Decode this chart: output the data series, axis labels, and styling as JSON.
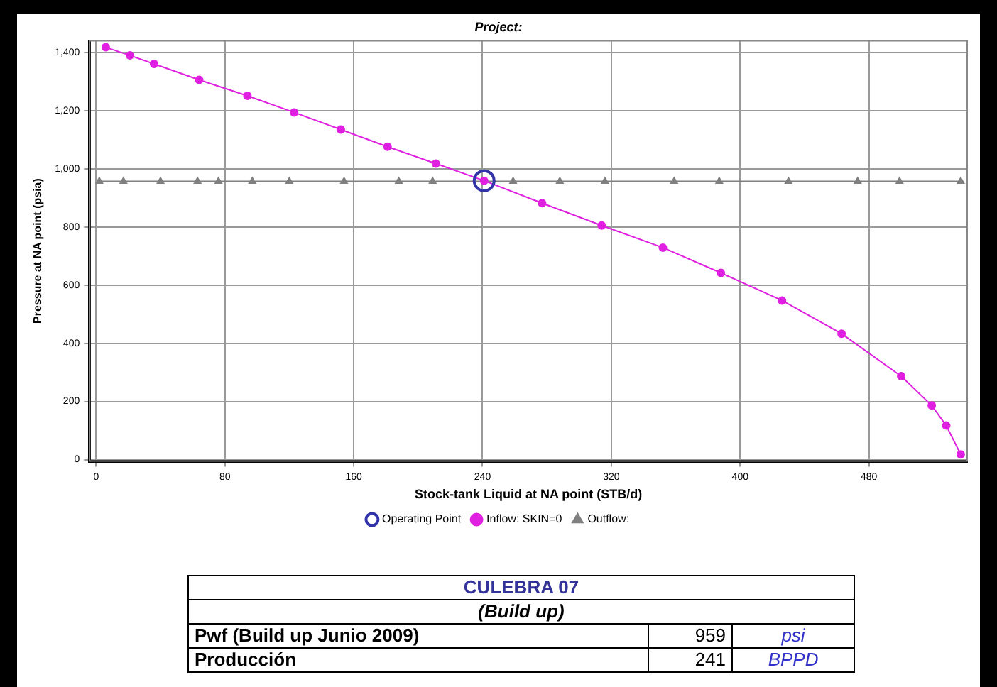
{
  "chart_data": {
    "type": "line",
    "title": "Project:",
    "xlabel": "Stock-tank Liquid at NA point (STB/d)",
    "ylabel": "Pressure at NA point (psia)",
    "xlim": [
      -4,
      541
    ],
    "xticks": [
      0,
      80,
      160,
      240,
      320,
      400,
      480
    ],
    "ylim": [
      -5,
      1440
    ],
    "yticks": [
      {
        "value": 0,
        "label": "0"
      },
      {
        "value": 200,
        "label": "200"
      },
      {
        "value": 400,
        "label": "400"
      },
      {
        "value": 600,
        "label": "600"
      },
      {
        "value": 800,
        "label": "800"
      },
      {
        "value": 1000,
        "label": "1,000"
      },
      {
        "value": 1200,
        "label": "1,200"
      },
      {
        "value": 1400,
        "label": "1,400"
      }
    ],
    "grid": true,
    "legend": "bottom",
    "line_style": "solid",
    "series": [
      {
        "name": "Operating Point",
        "type": "scatter",
        "marker": "circle",
        "color": "#3333aa",
        "x": [
          241
        ],
        "values": [
          959
        ]
      },
      {
        "name": "Inflow: SKIN=0",
        "marker": "circle",
        "color": "#e020e0",
        "x": [
          6,
          21,
          36,
          64,
          94,
          123,
          152,
          181,
          211,
          241,
          277,
          314,
          352,
          388,
          426,
          463,
          500,
          519,
          528,
          537
        ],
        "values": [
          1418,
          1390,
          1361,
          1306,
          1251,
          1194,
          1135,
          1076,
          1018,
          959,
          882,
          805,
          729,
          642,
          547,
          433,
          287,
          186,
          117,
          18
        ]
      },
      {
        "name": "Outflow:",
        "marker": "triangle",
        "color": "#808080",
        "x": [
          2,
          17,
          40,
          63,
          76,
          97,
          120,
          154,
          188,
          209,
          259,
          288,
          316,
          359,
          387,
          430,
          473,
          499,
          537
        ],
        "values": [
          957,
          957,
          957,
          957,
          957,
          957,
          957,
          957,
          957,
          957,
          957,
          957,
          957,
          957,
          957,
          957,
          957,
          957,
          957
        ]
      }
    ],
    "annotations": [
      "CULEBRA 07",
      "(Build up)",
      "Pwf (Build up Junio 2009)",
      "959",
      "psi",
      "Producción",
      "241",
      "BPPD"
    ]
  }
}
